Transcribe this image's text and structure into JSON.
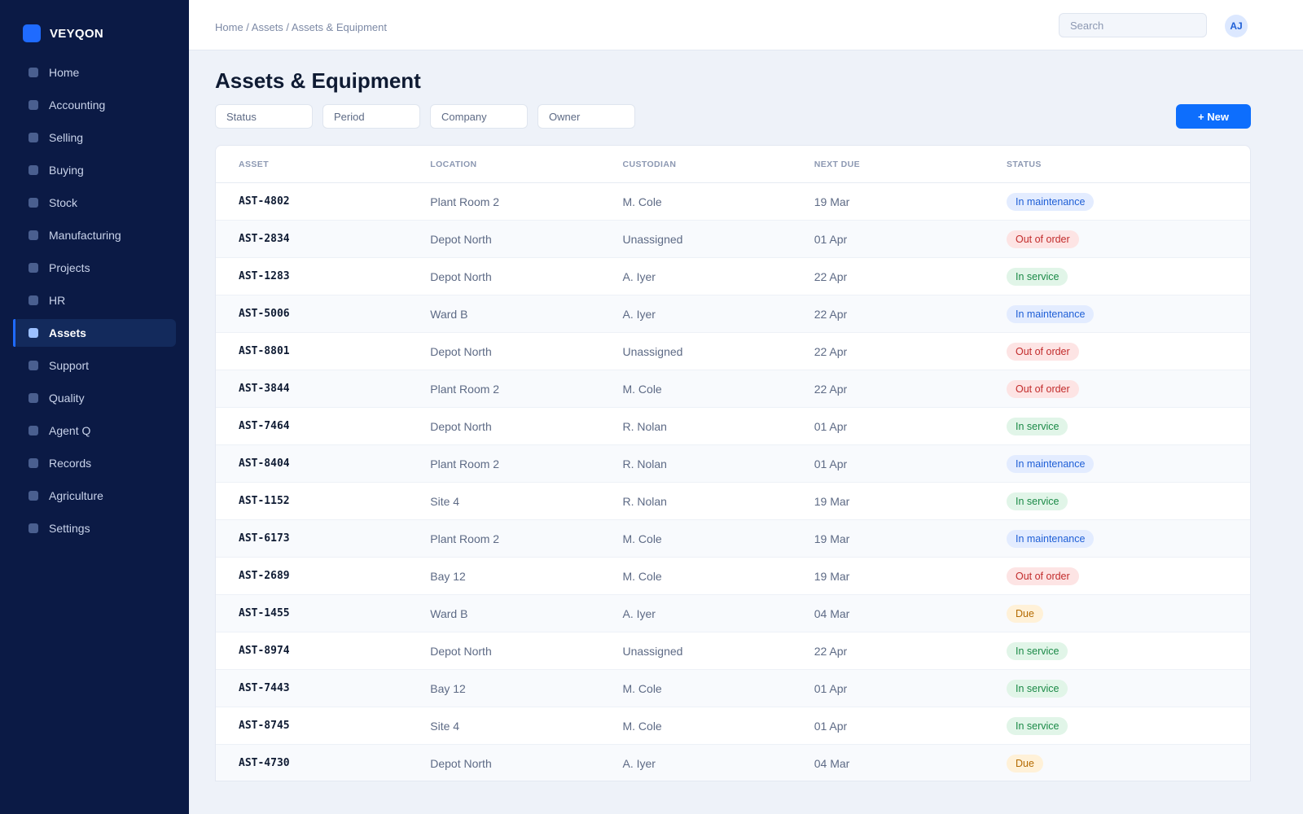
{
  "brand": {
    "name": "VEYQON",
    "accent": "#1f6bff"
  },
  "sidebar": {
    "items": [
      {
        "label": "Home",
        "key": "home"
      },
      {
        "label": "Accounting",
        "key": "accounting"
      },
      {
        "label": "Selling",
        "key": "selling"
      },
      {
        "label": "Buying",
        "key": "buying"
      },
      {
        "label": "Stock",
        "key": "stock"
      },
      {
        "label": "Manufacturing",
        "key": "manufacturing"
      },
      {
        "label": "Projects",
        "key": "projects"
      },
      {
        "label": "HR",
        "key": "hr"
      },
      {
        "label": "Assets",
        "key": "assets",
        "active": true
      },
      {
        "label": "Support",
        "key": "support"
      },
      {
        "label": "Quality",
        "key": "quality"
      },
      {
        "label": "Agent Q",
        "key": "agent-q"
      },
      {
        "label": "Records",
        "key": "records"
      },
      {
        "label": "Agriculture",
        "key": "agriculture"
      },
      {
        "label": "Settings",
        "key": "settings"
      }
    ]
  },
  "header": {
    "breadcrumb": "Home / Assets / Assets & Equipment",
    "search_placeholder": "Search",
    "avatar_initials": "AJ"
  },
  "main": {
    "title": "Assets & Equipment",
    "filters": [
      "Status",
      "Period",
      "Company",
      "Owner"
    ],
    "new_button_label": "+ New"
  },
  "table": {
    "columns": [
      "Asset",
      "Location",
      "Custodian",
      "Next due",
      "Status"
    ],
    "rows": [
      {
        "asset": "AST-4802",
        "location": "Plant Room 2",
        "custodian": "M. Cole",
        "next_due": "19 Mar",
        "status": "In maintenance"
      },
      {
        "asset": "AST-2834",
        "location": "Depot North",
        "custodian": "Unassigned",
        "next_due": "01 Apr",
        "status": "Out of order"
      },
      {
        "asset": "AST-1283",
        "location": "Depot North",
        "custodian": "A. Iyer",
        "next_due": "22 Apr",
        "status": "In service"
      },
      {
        "asset": "AST-5006",
        "location": "Ward B",
        "custodian": "A. Iyer",
        "next_due": "22 Apr",
        "status": "In maintenance"
      },
      {
        "asset": "AST-8801",
        "location": "Depot North",
        "custodian": "Unassigned",
        "next_due": "22 Apr",
        "status": "Out of order"
      },
      {
        "asset": "AST-3844",
        "location": "Plant Room 2",
        "custodian": "M. Cole",
        "next_due": "22 Apr",
        "status": "Out of order"
      },
      {
        "asset": "AST-7464",
        "location": "Depot North",
        "custodian": "R. Nolan",
        "next_due": "01 Apr",
        "status": "In service"
      },
      {
        "asset": "AST-8404",
        "location": "Plant Room 2",
        "custodian": "R. Nolan",
        "next_due": "01 Apr",
        "status": "In maintenance"
      },
      {
        "asset": "AST-1152",
        "location": "Site 4",
        "custodian": "R. Nolan",
        "next_due": "19 Mar",
        "status": "In service"
      },
      {
        "asset": "AST-6173",
        "location": "Plant Room 2",
        "custodian": "M. Cole",
        "next_due": "19 Mar",
        "status": "In maintenance"
      },
      {
        "asset": "AST-2689",
        "location": "Bay 12",
        "custodian": "M. Cole",
        "next_due": "19 Mar",
        "status": "Out of order"
      },
      {
        "asset": "AST-1455",
        "location": "Ward B",
        "custodian": "A. Iyer",
        "next_due": "04 Mar",
        "status": "Due"
      },
      {
        "asset": "AST-8974",
        "location": "Depot North",
        "custodian": "Unassigned",
        "next_due": "22 Apr",
        "status": "In service"
      },
      {
        "asset": "AST-7443",
        "location": "Bay 12",
        "custodian": "M. Cole",
        "next_due": "01 Apr",
        "status": "In service"
      },
      {
        "asset": "AST-8745",
        "location": "Site 4",
        "custodian": "M. Cole",
        "next_due": "01 Apr",
        "status": "In service"
      },
      {
        "asset": "AST-4730",
        "location": "Depot North",
        "custodian": "A. Iyer",
        "next_due": "04 Mar",
        "status": "Due"
      }
    ]
  },
  "status_colors": {
    "In maintenance": "#1f5fd6",
    "Out of order": "#c22b2b",
    "In service": "#1b8a47",
    "Due": "#b46a00"
  },
  "icons": {
    "nav_item": "square-icon",
    "brand": "logo-square-icon"
  }
}
